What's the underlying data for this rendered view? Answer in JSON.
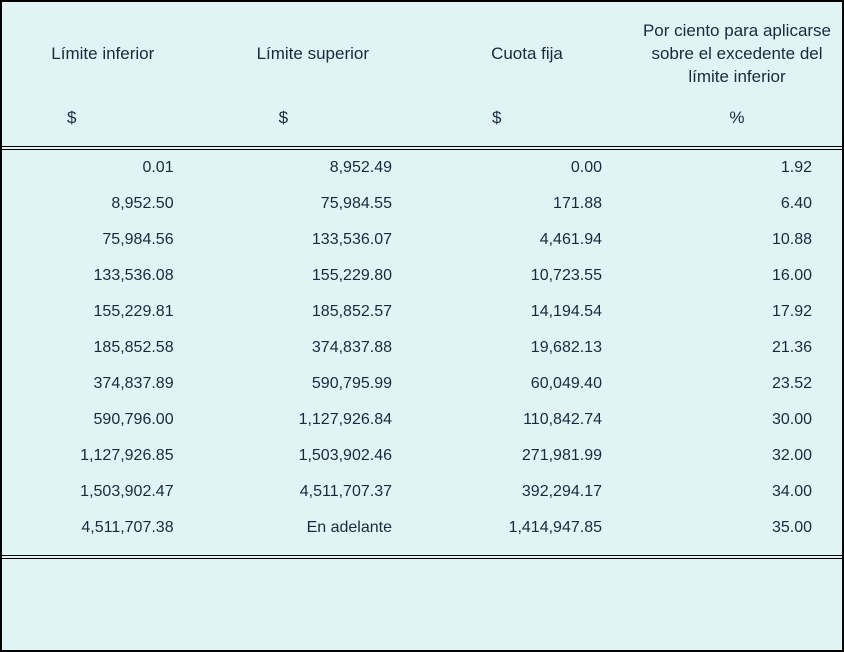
{
  "table": {
    "background_color": "#e0f4f6",
    "text_color": "#1a2a3a",
    "border_color": "#000000",
    "header_fontsize": 17,
    "cell_fontsize": 16,
    "columns": [
      {
        "label": "Límite inferior",
        "unit": "$",
        "align": "right"
      },
      {
        "label": "Límite superior",
        "unit": "$",
        "align": "right"
      },
      {
        "label": "Cuota fija",
        "unit": "$",
        "align": "right"
      },
      {
        "label": "Por ciento para aplicarse sobre el excedente del límite inferior",
        "unit": "%",
        "align": "right"
      }
    ],
    "rows": [
      [
        "0.01",
        "8,952.49",
        "0.00",
        "1.92"
      ],
      [
        "8,952.50",
        "75,984.55",
        "171.88",
        "6.40"
      ],
      [
        "75,984.56",
        "133,536.07",
        "4,461.94",
        "10.88"
      ],
      [
        "133,536.08",
        "155,229.80",
        "10,723.55",
        "16.00"
      ],
      [
        "155,229.81",
        "185,852.57",
        "14,194.54",
        "17.92"
      ],
      [
        "185,852.58",
        "374,837.88",
        "19,682.13",
        "21.36"
      ],
      [
        "374,837.89",
        "590,795.99",
        "60,049.40",
        "23.52"
      ],
      [
        "590,796.00",
        "1,127,926.84",
        "110,842.74",
        "30.00"
      ],
      [
        "1,127,926.85",
        "1,503,902.46",
        "271,981.99",
        "32.00"
      ],
      [
        "1,503,902.47",
        "4,511,707.37",
        "392,294.17",
        "34.00"
      ],
      [
        "4,511,707.38",
        "En adelante",
        "1,414,947.85",
        "35.00"
      ]
    ]
  }
}
